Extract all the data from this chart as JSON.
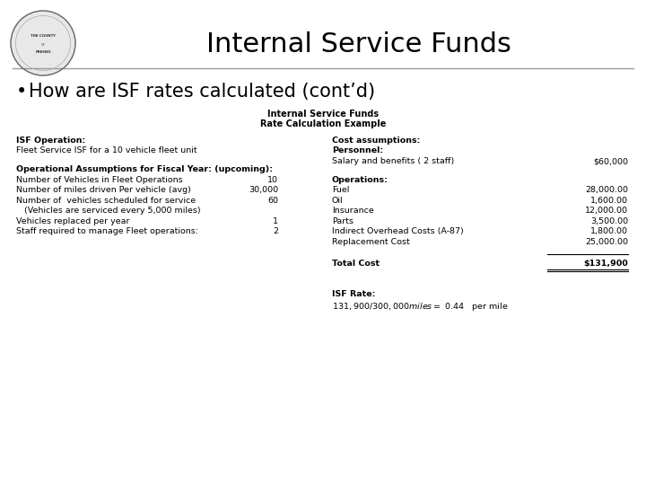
{
  "title": "Internal Service Funds",
  "bullet": "How are ISF rates calculated (cont’d)",
  "table_title_line1": "Internal Service Funds",
  "table_title_line2": "Rate Calculation Example",
  "left_col": {
    "isf_op_label": "ISF Operation:",
    "isf_op_value": "Fleet Service ISF for a 10 vehicle fleet unit",
    "op_assump_label": "Operational Assumptions for Fiscal Year: (upcoming):",
    "rows": [
      [
        "Number of Vehicles in Fleet Operations",
        "10"
      ],
      [
        "Number of miles driven Per vehicle (avg)",
        "30,000"
      ],
      [
        "Number of  vehicles scheduled for service",
        "60"
      ],
      [
        "   (Vehicles are serviced every 5,000 miles)",
        ""
      ],
      [
        "Vehicles replaced per year",
        "1"
      ],
      [
        "Staff required to manage Fleet operations:",
        "2"
      ]
    ]
  },
  "right_col": {
    "cost_assump_label": "Cost assumptions:",
    "personnel_label": "Personnel:",
    "salary_row": [
      "Salary and benefits ( 2 staff)",
      "$60,000"
    ],
    "operations_label": "Operations:",
    "operations_rows": [
      [
        "Fuel",
        "28,000.00"
      ],
      [
        "Oil",
        "1,600.00"
      ],
      [
        "Insurance",
        "12,000.00"
      ],
      [
        "Parts",
        "3,500.00"
      ],
      [
        "Indirect Overhead Costs (A-87)",
        "1,800.00"
      ],
      [
        "Replacement Cost",
        "25,000.00"
      ]
    ],
    "total_cost_label": "Total Cost",
    "total_cost_value": "$131,900",
    "isf_rate_label": "ISF Rate:",
    "isf_rate_formula": "$131,900/300,000 miles =   $ 0.44   per mile"
  },
  "bg_color": "#ffffff",
  "text_color": "#000000",
  "title_fontsize": 22,
  "bullet_fontsize": 15,
  "table_title_fontsize": 7,
  "body_fontsize": 6.8,
  "line_color": "#999999"
}
